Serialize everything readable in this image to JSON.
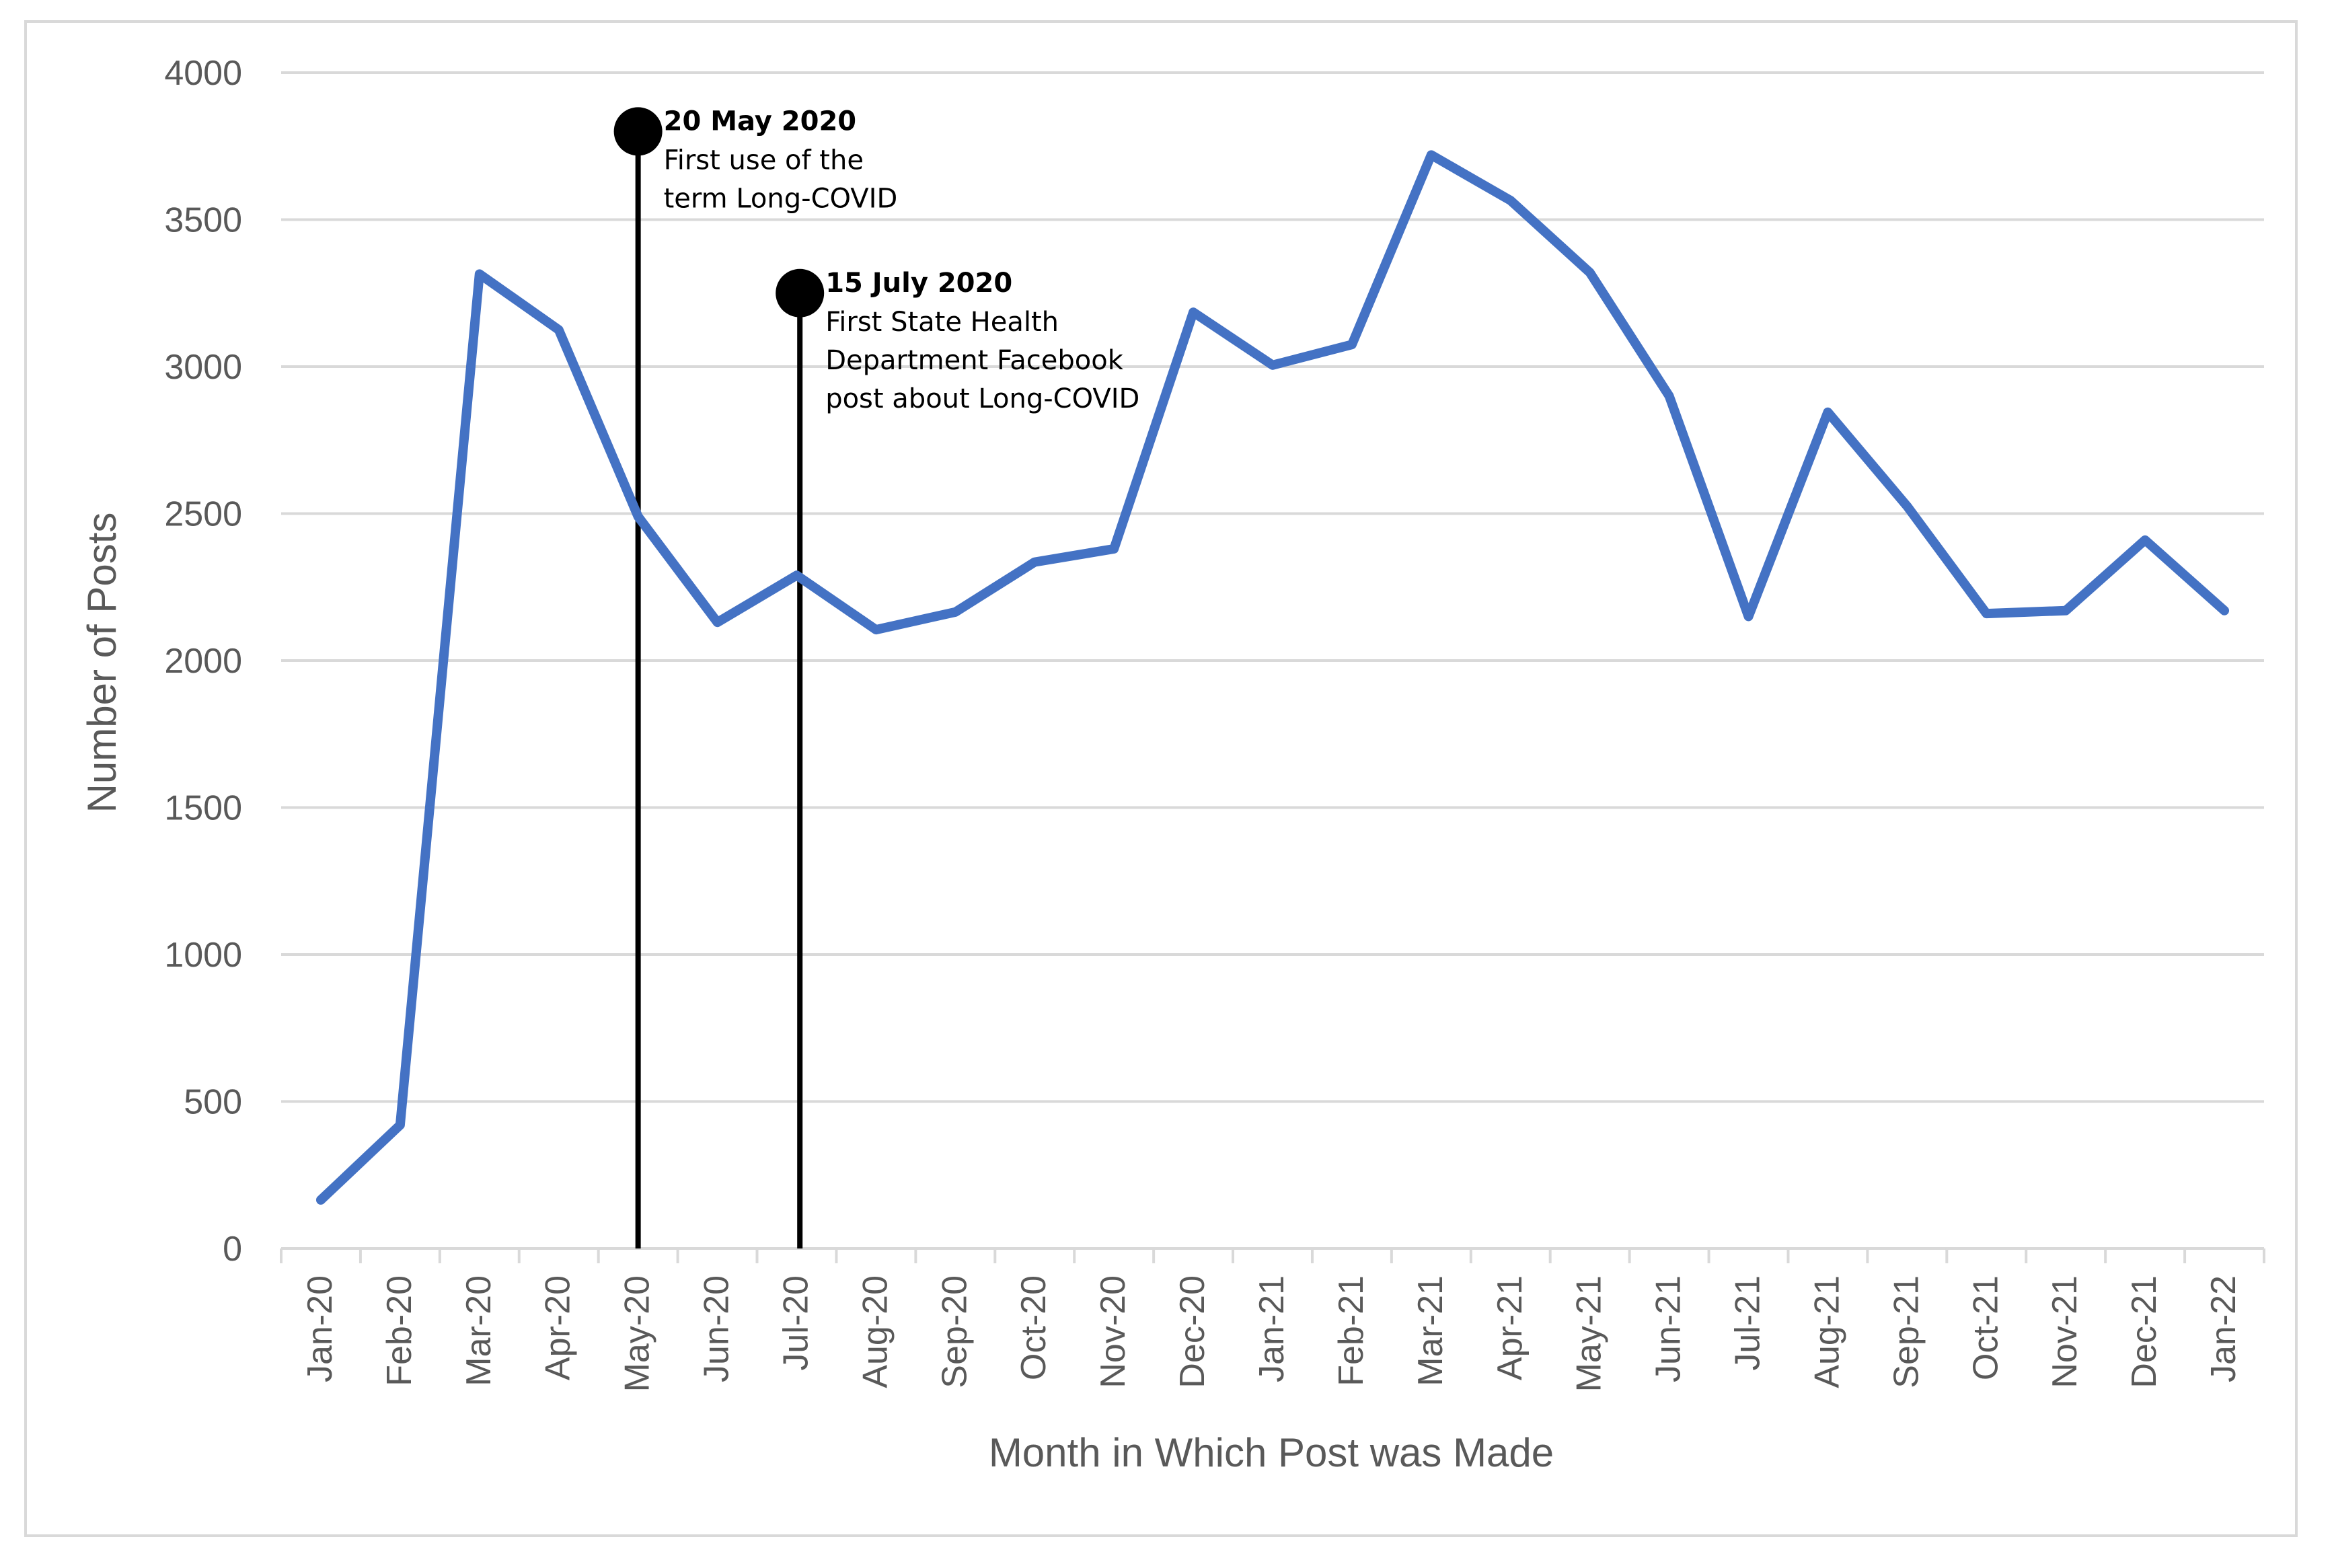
{
  "chart_data": {
    "type": "line",
    "title": "",
    "xlabel": "Month in Which Post was Made",
    "ylabel": "Number of Posts",
    "ylim": [
      0,
      4000
    ],
    "yticks": [
      0,
      500,
      1000,
      1500,
      2000,
      2500,
      3000,
      3500,
      4000
    ],
    "grid": "horizontal",
    "categories": [
      "Jan-20",
      "Feb-20",
      "Mar-20",
      "Apr-20",
      "May-20",
      "Jun-20",
      "Jul-20",
      "Aug-20",
      "Sep-20",
      "Oct-20",
      "Nov-20",
      "Dec-20",
      "Jan-21",
      "Feb-21",
      "Mar-21",
      "Apr-21",
      "May-21",
      "Jun-21",
      "Jul-21",
      "Aug-21",
      "Sep-21",
      "Oct-21",
      "Nov-21",
      "Dec-21",
      "Jan-22"
    ],
    "series": [
      {
        "color": "#4472c4",
        "values": [
          165,
          420,
          3315,
          3125,
          2490,
          2130,
          2290,
          2105,
          2165,
          2335,
          2380,
          3185,
          3005,
          3075,
          3720,
          3565,
          3320,
          2900,
          2150,
          2845,
          2525,
          2160,
          2170,
          2410,
          2170
        ]
      }
    ],
    "annotations": [
      {
        "category": "May-20",
        "offset": 0,
        "marker_y": 3800,
        "title": "20 May 2020",
        "lines": [
          "First use of the",
          "term Long-COVID"
        ]
      },
      {
        "category": "Jul-20",
        "offset": 0.04,
        "marker_y": 3250,
        "title": "15 July 2020",
        "lines": [
          "First State Health",
          "Department Facebook",
          "post about Long-COVID"
        ]
      }
    ]
  }
}
